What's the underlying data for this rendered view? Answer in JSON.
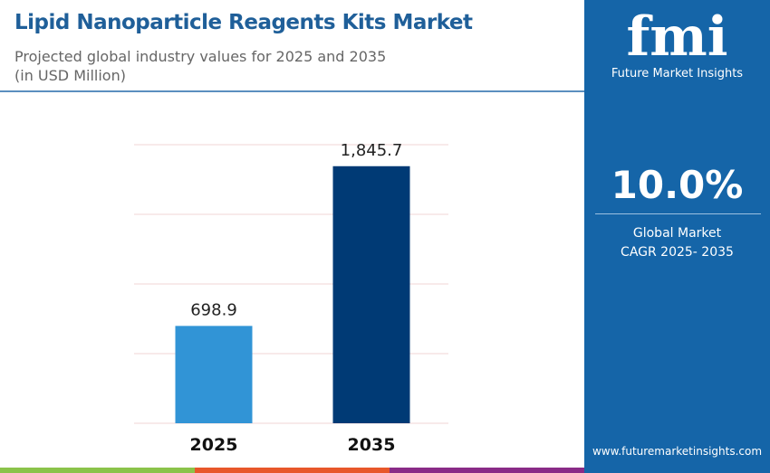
{
  "title": "Lipid Nanoparticle Reagents Kits Market",
  "subtitle": "Projected global industry values for 2025 and 2035",
  "unit": "(in USD Million)",
  "panel": {
    "logo_text": "fmi",
    "brand": "Future Market Insights",
    "cagr": "10.0%",
    "cagr_label_1": "Global Market",
    "cagr_label_2": "CAGR 2025- 2035",
    "url": "www.futuremarketinsights.com"
  },
  "colors": {
    "bar_2025": "#3194d6",
    "bar_2035": "#003a75",
    "panel": "#1565a8",
    "title": "#1f5f99",
    "stripe": [
      "#8bc34a",
      "#e8572a",
      "#8a2b87"
    ]
  },
  "chart_data": {
    "type": "bar",
    "categories": [
      "2025",
      "2035"
    ],
    "values": [
      698.9,
      1845.7
    ],
    "value_labels": [
      "698.9",
      "1,845.7"
    ],
    "ylim": [
      0,
      2000
    ],
    "grid": true,
    "gridlines": [
      0,
      500,
      1000,
      1500,
      2000
    ]
  }
}
